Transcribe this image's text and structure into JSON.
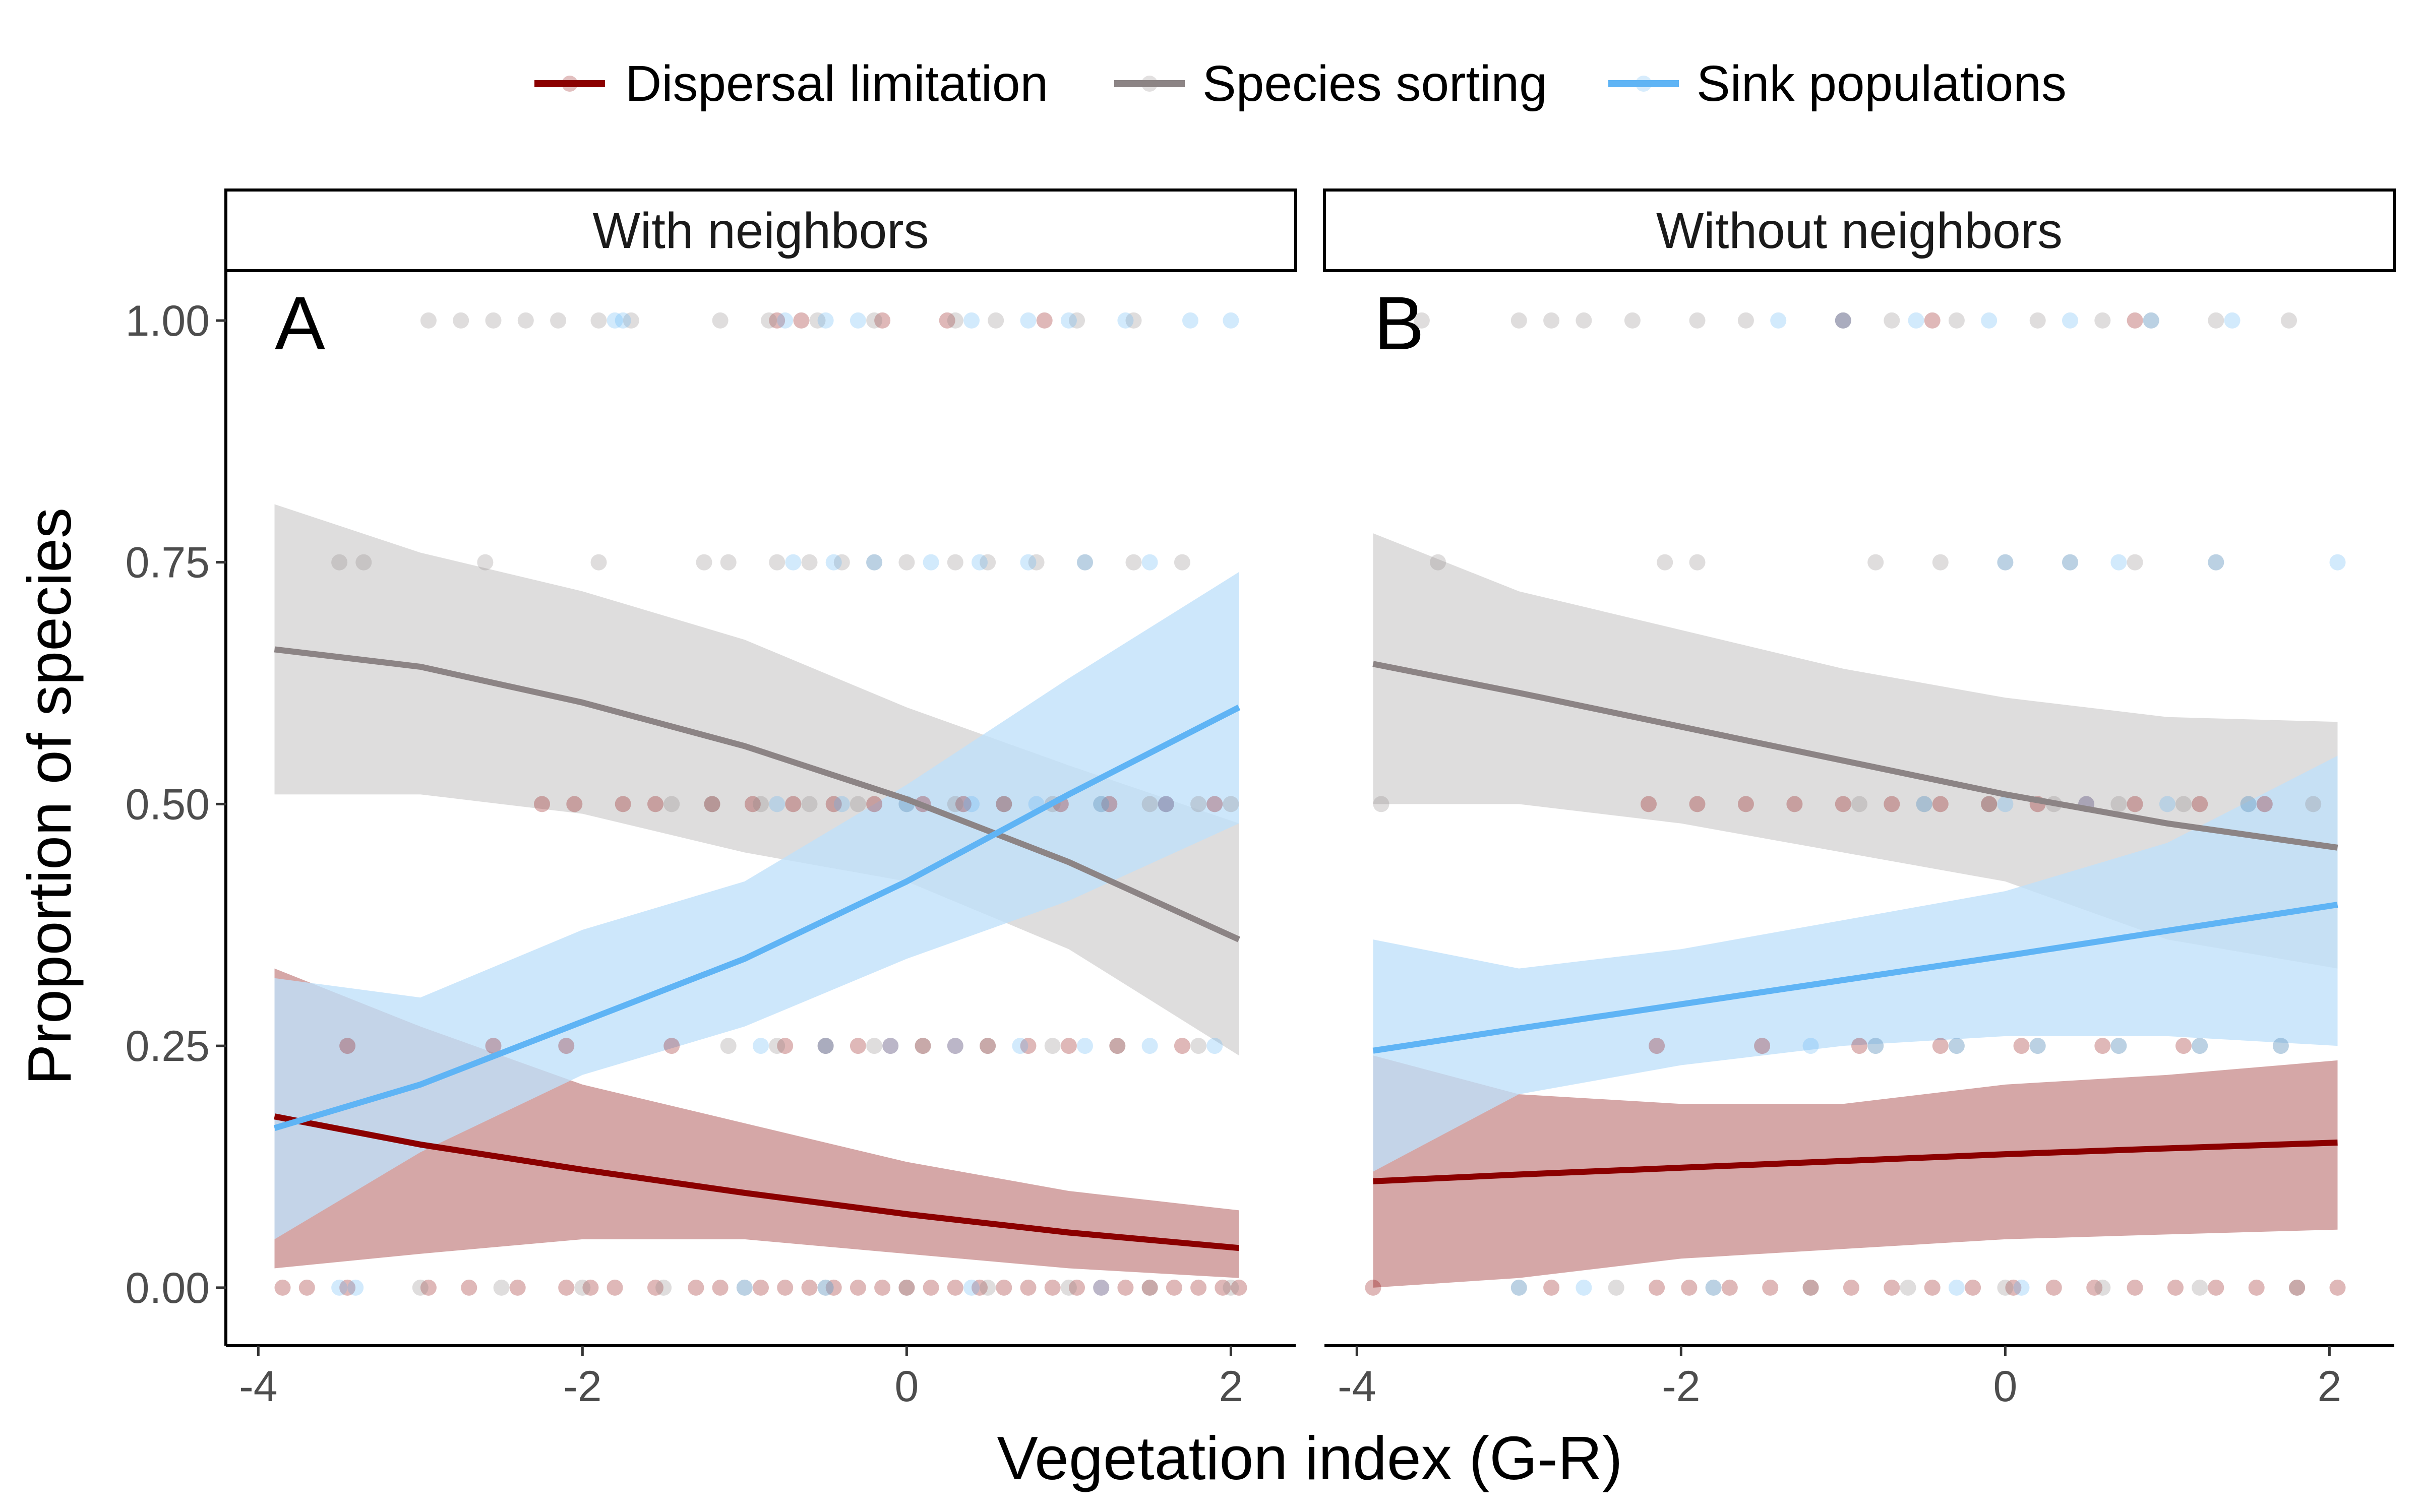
{
  "chart_data": {
    "type": "scatter",
    "xlabel": "Vegetation index (G-R)",
    "ylabel": "Proportion of species",
    "xlim": [
      -4.2,
      2.4
    ],
    "ylim": [
      -0.06,
      1.05
    ],
    "x_ticks": [
      -4,
      -2,
      0,
      2
    ],
    "x_tick_labels": [
      "-4",
      "-2",
      "0",
      "2"
    ],
    "y_ticks": [
      0,
      0.25,
      0.5,
      0.75,
      1
    ],
    "y_tick_labels": [
      "0.00",
      "0.25",
      "0.50",
      "0.75",
      "1.00"
    ],
    "grid": false,
    "legend_position": "top",
    "legend": [
      {
        "label": "Dispersal limitation",
        "color": "#8B0000"
      },
      {
        "label": "Species sorting",
        "color": "#8c8485"
      },
      {
        "label": "Sink populations",
        "color": "#5fb4f5"
      }
    ],
    "panels": [
      {
        "letter": "A",
        "strip": "With neighbors",
        "series": [
          {
            "name": "Dispersal limitation",
            "color": "#8B0000",
            "fill": "#c98e8e",
            "fit_x": [
              -3.9,
              -3.0,
              -2.0,
              -1.0,
              0.0,
              1.0,
              2.05
            ],
            "fit_y": [
              0.177,
              0.148,
              0.122,
              0.098,
              0.076,
              0.057,
              0.041
            ],
            "band_low": [
              0.02,
              0.035,
              0.05,
              0.05,
              0.035,
              0.02,
              0.01
            ],
            "band_high": [
              0.33,
              0.27,
              0.21,
              0.17,
              0.13,
              0.1,
              0.08
            ],
            "points_y0": [
              -3.85,
              -3.7,
              -3.45,
              -2.95,
              -2.7,
              -2.4,
              -2.1,
              -1.95,
              -1.8,
              -1.55,
              -1.3,
              -1.15,
              -0.9,
              -0.75,
              -0.6,
              -0.45,
              -0.3,
              -0.15,
              0.0,
              0.15,
              0.3,
              0.45,
              0.6,
              0.75,
              0.9,
              1.05,
              1.2,
              1.35,
              1.5,
              1.65,
              1.8,
              1.95,
              2.05
            ],
            "points_y025": [
              -3.45,
              -2.55,
              -2.1,
              -1.45,
              -0.75,
              -0.5,
              -0.3,
              -0.1,
              0.1,
              0.3,
              0.5,
              0.75,
              1.0,
              1.3,
              1.7
            ],
            "points_y05": [
              -2.25,
              -2.05,
              -1.75,
              -1.55,
              -1.2,
              -0.95,
              -0.7,
              -0.45,
              -0.2,
              0.1,
              0.35,
              0.6,
              0.95,
              1.25,
              1.6,
              1.9
            ],
            "points_y1": [
              -0.8,
              -0.65,
              -0.15,
              0.25,
              0.85
            ]
          },
          {
            "name": "Species sorting",
            "color": "#8c8485",
            "fill": "#d5d4d4",
            "fit_x": [
              -3.9,
              -3.0,
              -2.0,
              -1.0,
              0.0,
              1.0,
              2.05
            ],
            "fit_y": [
              0.66,
              0.642,
              0.605,
              0.56,
              0.505,
              0.44,
              0.36
            ],
            "band_low": [
              0.51,
              0.51,
              0.49,
              0.45,
              0.42,
              0.35,
              0.24
            ],
            "band_high": [
              0.81,
              0.76,
              0.72,
              0.67,
              0.6,
              0.54,
              0.48
            ],
            "points_y1": [
              -2.95,
              -2.75,
              -2.55,
              -2.35,
              -2.15,
              -1.9,
              -1.7,
              -1.15,
              -0.85,
              -0.55,
              -0.2,
              0.3,
              0.55,
              1.05,
              1.4
            ],
            "points_y075": [
              -3.5,
              -3.35,
              -2.6,
              -1.9,
              -1.25,
              -1.1,
              -0.8,
              -0.6,
              -0.4,
              -0.2,
              0.0,
              0.3,
              0.5,
              0.8,
              1.1,
              1.4,
              1.7
            ],
            "points_y05": [
              -1.45,
              -1.2,
              -0.9,
              -0.6,
              -0.3,
              0.0,
              0.3,
              0.6,
              0.9,
              1.2,
              1.5,
              1.8,
              2.0
            ],
            "points_y025": [
              -1.1,
              -0.8,
              -0.5,
              -0.2,
              0.1,
              0.5,
              0.9,
              1.3,
              1.8
            ],
            "points_y0": [
              -3.0,
              -2.5,
              -2.0,
              -1.5,
              -1.0,
              -0.5,
              0.0,
              0.5,
              1.0,
              1.5,
              2.0
            ]
          },
          {
            "name": "Sink populations",
            "color": "#5fb4f5",
            "fill": "#bfe0fa",
            "fit_x": [
              -3.9,
              -3.0,
              -2.0,
              -1.0,
              0.0,
              1.0,
              2.05
            ],
            "fit_y": [
              0.165,
              0.21,
              0.275,
              0.34,
              0.42,
              0.51,
              0.6
            ],
            "band_low": [
              0.05,
              0.14,
              0.22,
              0.27,
              0.34,
              0.4,
              0.48
            ],
            "band_high": [
              0.32,
              0.3,
              0.37,
              0.42,
              0.52,
              0.63,
              0.74
            ],
            "points_y1": [
              -1.8,
              -1.75,
              -0.75,
              -0.5,
              -0.3,
              0.4,
              0.75,
              1.0,
              1.35,
              1.75,
              2.0
            ],
            "points_y075": [
              -0.7,
              -0.45,
              -0.2,
              0.15,
              0.45,
              0.75,
              1.1,
              1.5
            ],
            "points_y05": [
              -0.8,
              -0.4,
              0.0,
              0.4,
              0.8,
              1.2,
              1.6
            ],
            "points_y025": [
              -0.9,
              -0.5,
              -0.1,
              0.3,
              0.7,
              1.1,
              1.5,
              1.9
            ],
            "points_y0": [
              -3.5,
              -3.4,
              -1.0,
              -0.5,
              0.4,
              1.2
            ]
          }
        ]
      },
      {
        "letter": "B",
        "strip": "Without neighbors",
        "series": [
          {
            "name": "Dispersal limitation",
            "color": "#8B0000",
            "fill": "#c98e8e",
            "fit_x": [
              -3.9,
              -3.0,
              -2.0,
              -1.0,
              0.0,
              1.0,
              2.05
            ],
            "fit_y": [
              0.11,
              0.117,
              0.124,
              0.131,
              0.138,
              0.144,
              0.15
            ],
            "band_low": [
              0.0,
              0.01,
              0.03,
              0.04,
              0.05,
              0.055,
              0.06
            ],
            "band_high": [
              0.24,
              0.2,
              0.19,
              0.19,
              0.21,
              0.22,
              0.235
            ],
            "points_y0": [
              -3.9,
              -2.8,
              -2.15,
              -1.95,
              -1.7,
              -1.45,
              -1.2,
              -0.95,
              -0.7,
              -0.45,
              -0.2,
              0.05,
              0.3,
              0.55,
              0.8,
              1.05,
              1.3,
              1.55,
              1.8,
              2.05
            ],
            "points_y025": [
              -2.15,
              -1.5,
              -0.9,
              -0.4,
              0.1,
              0.6,
              1.1
            ],
            "points_y05": [
              -2.2,
              -1.9,
              -1.6,
              -1.3,
              -1.0,
              -0.7,
              -0.4,
              -0.1,
              0.2,
              0.5,
              0.8,
              1.2,
              1.6
            ],
            "points_y1": [
              -1.0,
              -0.45,
              0.8
            ]
          },
          {
            "name": "Species sorting",
            "color": "#8c8485",
            "fill": "#d5d4d4",
            "fit_x": [
              -3.9,
              -3.0,
              -2.0,
              -1.0,
              0.0,
              1.0,
              2.05
            ],
            "fit_y": [
              0.645,
              0.615,
              0.58,
              0.545,
              0.51,
              0.48,
              0.455
            ],
            "band_low": [
              0.5,
              0.5,
              0.48,
              0.45,
              0.42,
              0.36,
              0.33
            ],
            "band_high": [
              0.78,
              0.72,
              0.68,
              0.64,
              0.61,
              0.59,
              0.585
            ],
            "points_y1": [
              -3.6,
              -3.0,
              -2.8,
              -2.6,
              -2.3,
              -1.9,
              -1.6,
              -1.0,
              -0.7,
              -0.3,
              0.2,
              0.6,
              0.9,
              1.3,
              1.75
            ],
            "points_y075": [
              -3.5,
              -2.1,
              -1.9,
              -0.8,
              -0.4,
              0.0,
              0.4,
              0.8,
              1.3
            ],
            "points_y05": [
              -3.85,
              -0.9,
              -0.5,
              -0.1,
              0.3,
              0.7,
              1.1,
              1.5,
              1.9
            ],
            "points_y025": [
              -0.8,
              -0.3,
              0.2,
              0.7,
              1.2,
              1.7
            ],
            "points_y0": [
              -3.0,
              -2.4,
              -1.8,
              -1.2,
              -0.6,
              0.0,
              0.6,
              1.2,
              1.8
            ]
          },
          {
            "name": "Sink populations",
            "color": "#5fb4f5",
            "fill": "#bfe0fa",
            "fit_x": [
              -3.9,
              -3.0,
              -2.0,
              -1.0,
              0.0,
              1.0,
              2.05
            ],
            "fit_y": [
              0.245,
              0.268,
              0.293,
              0.318,
              0.343,
              0.369,
              0.396
            ],
            "band_low": [
              0.12,
              0.2,
              0.23,
              0.25,
              0.26,
              0.26,
              0.25
            ],
            "band_high": [
              0.36,
              0.33,
              0.35,
              0.38,
              0.41,
              0.46,
              0.55
            ],
            "points_y1": [
              -1.4,
              -1.0,
              -0.55,
              -0.1,
              0.4,
              0.9,
              1.4
            ],
            "points_y075": [
              0.0,
              0.4,
              0.7,
              1.3,
              2.05
            ],
            "points_y05": [
              -0.5,
              0.0,
              0.5,
              1.0,
              1.5
            ],
            "points_y025": [
              -1.2,
              -0.8,
              -0.3,
              0.2,
              0.7,
              1.2,
              1.7
            ],
            "points_y0": [
              -3.0,
              -2.6,
              -1.8,
              -0.3,
              0.1
            ]
          }
        ]
      }
    ]
  }
}
